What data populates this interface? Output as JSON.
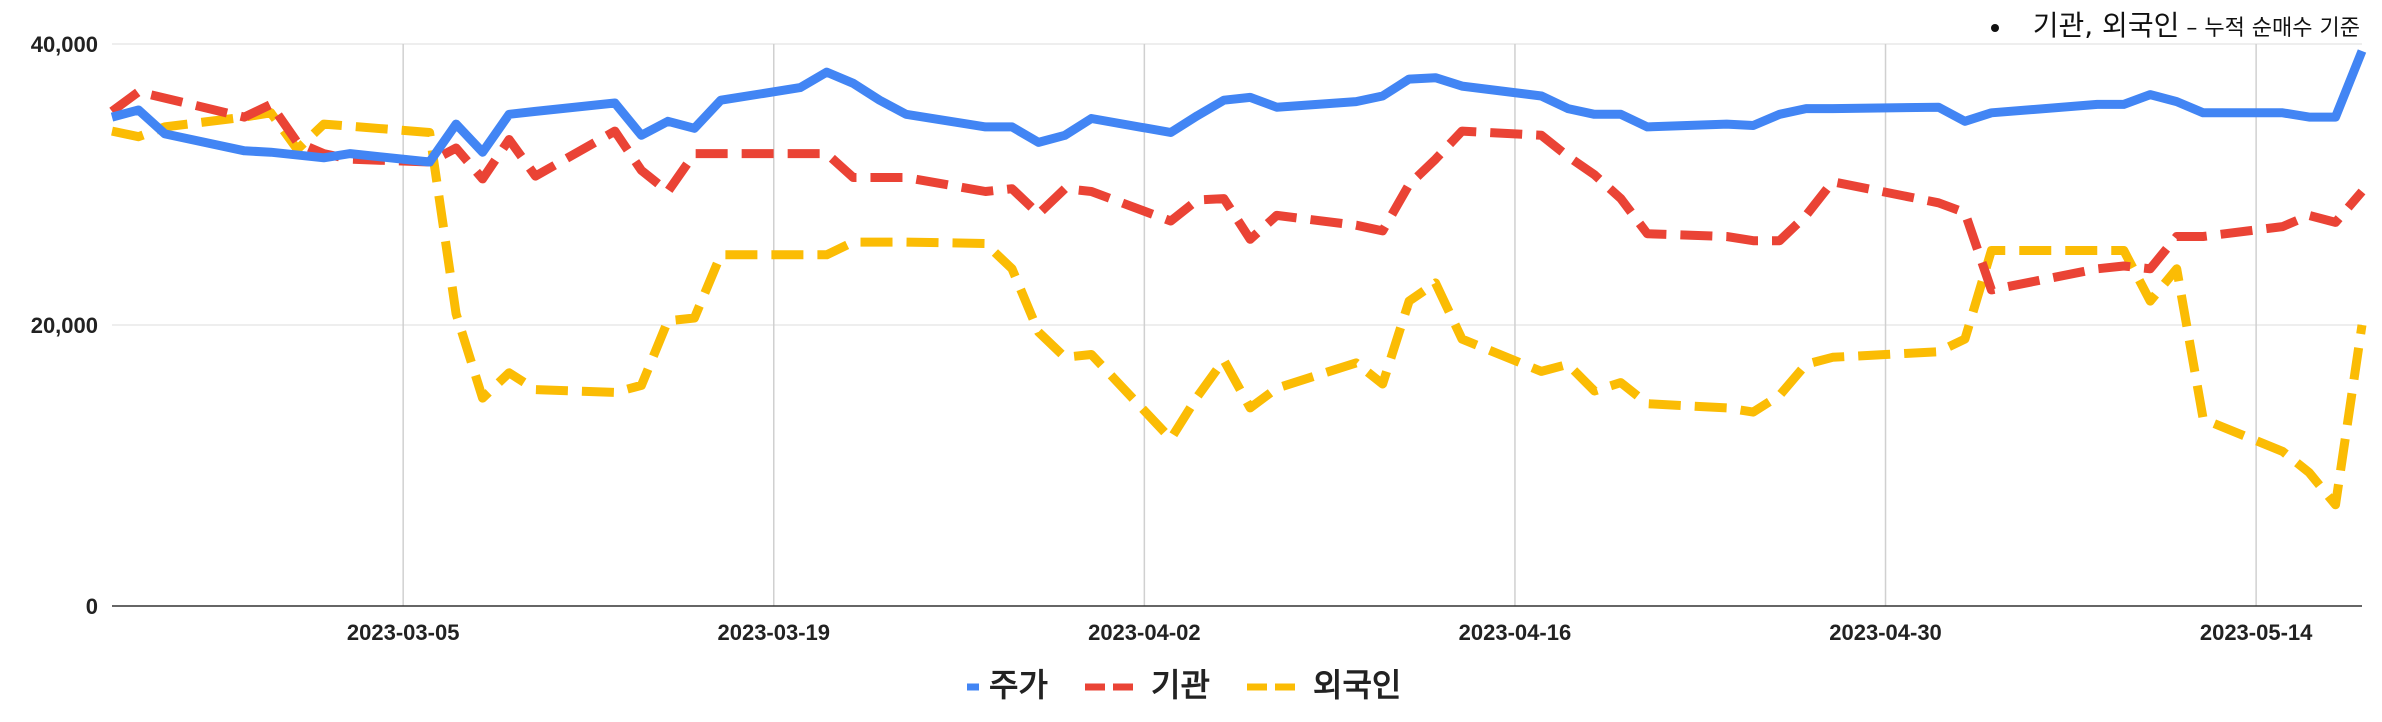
{
  "note": {
    "strong": "기관, 외국인",
    "weak": " – 누적 순매수 기준"
  },
  "chart_data": {
    "type": "line",
    "title": "",
    "xlabel": "",
    "ylabel": "",
    "ylim": [
      0,
      40000
    ],
    "y_ticks": [
      0,
      20000,
      40000
    ],
    "y_tick_labels": [
      "0",
      "20,000",
      "40,000"
    ],
    "x_range": [
      "2023-02-22",
      "2023-05-18"
    ],
    "x_ticks": [
      "2023-03-05",
      "2023-03-19",
      "2023-04-02",
      "2023-04-16",
      "2023-04-30",
      "2023-05-14"
    ],
    "grid": true,
    "legend_position": "bottom",
    "series": [
      {
        "name": "주가",
        "color": "#4285f4",
        "dash": "solid",
        "x": [
          "2023-02-22",
          "2023-02-23",
          "2023-02-24",
          "2023-02-27",
          "2023-02-28",
          "2023-03-02",
          "2023-03-03",
          "2023-03-06",
          "2023-03-07",
          "2023-03-08",
          "2023-03-09",
          "2023-03-10",
          "2023-03-13",
          "2023-03-14",
          "2023-03-15",
          "2023-03-16",
          "2023-03-17",
          "2023-03-20",
          "2023-03-21",
          "2023-03-22",
          "2023-03-23",
          "2023-03-24",
          "2023-03-27",
          "2023-03-28",
          "2023-03-29",
          "2023-03-30",
          "2023-03-31",
          "2023-04-03",
          "2023-04-04",
          "2023-04-05",
          "2023-04-06",
          "2023-04-07",
          "2023-04-10",
          "2023-04-11",
          "2023-04-12",
          "2023-04-13",
          "2023-04-14",
          "2023-04-17",
          "2023-04-18",
          "2023-04-19",
          "2023-04-20",
          "2023-04-21",
          "2023-04-24",
          "2023-04-25",
          "2023-04-26",
          "2023-04-27",
          "2023-04-28",
          "2023-05-02",
          "2023-05-03",
          "2023-05-04",
          "2023-05-08",
          "2023-05-09",
          "2023-05-10",
          "2023-05-11",
          "2023-05-12",
          "2023-05-15",
          "2023-05-16",
          "2023-05-17",
          "2023-05-18"
        ],
        "values": [
          34800,
          35300,
          33600,
          32400,
          32300,
          31900,
          32200,
          31600,
          34300,
          32300,
          35000,
          35200,
          35800,
          33500,
          34500,
          34000,
          36000,
          36900,
          38000,
          37200,
          36000,
          35000,
          34100,
          34100,
          33000,
          33500,
          34700,
          33700,
          34900,
          36000,
          36200,
          35500,
          35900,
          36300,
          37500,
          37600,
          37000,
          36300,
          35400,
          35000,
          35000,
          34100,
          34300,
          34200,
          35000,
          35400,
          35400,
          35500,
          34500,
          35100,
          35700,
          35700,
          36400,
          35900,
          35100,
          35100,
          34800,
          34800,
          39500
        ]
      },
      {
        "name": "기관",
        "color": "#ea4335",
        "dash": "long-dash",
        "x": [
          "2023-02-22",
          "2023-02-23",
          "2023-02-27",
          "2023-02-28",
          "2023-03-01",
          "2023-03-02",
          "2023-03-03",
          "2023-03-06",
          "2023-03-07",
          "2023-03-08",
          "2023-03-09",
          "2023-03-10",
          "2023-03-13",
          "2023-03-14",
          "2023-03-15",
          "2023-03-16",
          "2023-03-17",
          "2023-03-20",
          "2023-03-21",
          "2023-03-22",
          "2023-03-23",
          "2023-03-24",
          "2023-03-27",
          "2023-03-28",
          "2023-03-29",
          "2023-03-30",
          "2023-03-31",
          "2023-04-03",
          "2023-04-04",
          "2023-04-05",
          "2023-04-06",
          "2023-04-07",
          "2023-04-10",
          "2023-04-11",
          "2023-04-12",
          "2023-04-13",
          "2023-04-14",
          "2023-04-17",
          "2023-04-18",
          "2023-04-19",
          "2023-04-20",
          "2023-04-21",
          "2023-04-24",
          "2023-04-25",
          "2023-04-26",
          "2023-04-27",
          "2023-04-28",
          "2023-05-02",
          "2023-05-03",
          "2023-05-04",
          "2023-05-08",
          "2023-05-09",
          "2023-05-10",
          "2023-05-11",
          "2023-05-12",
          "2023-05-15",
          "2023-05-16",
          "2023-05-17",
          "2023-05-18"
        ],
        "values": [
          35200,
          36600,
          34800,
          35700,
          33000,
          32200,
          31800,
          31600,
          32600,
          30400,
          33200,
          30600,
          33800,
          31000,
          29500,
          32200,
          32200,
          32200,
          32200,
          30500,
          30500,
          30500,
          29500,
          29700,
          27900,
          29700,
          29500,
          27400,
          28900,
          29000,
          26100,
          27800,
          27100,
          26700,
          30000,
          31800,
          33800,
          33500,
          32000,
          30700,
          29000,
          26500,
          26300,
          26000,
          26000,
          27800,
          30200,
          28700,
          28000,
          22500,
          24000,
          24200,
          24000,
          26300,
          26300,
          27000,
          27800,
          27300,
          29500
        ]
      },
      {
        "name": "외국인",
        "color": "#fbbc04",
        "dash": "long-dash",
        "x": [
          "2023-02-22",
          "2023-02-23",
          "2023-02-24",
          "2023-02-27",
          "2023-02-28",
          "2023-03-01",
          "2023-03-02",
          "2023-03-06",
          "2023-03-07",
          "2023-03-08",
          "2023-03-09",
          "2023-03-10",
          "2023-03-13",
          "2023-03-14",
          "2023-03-15",
          "2023-03-16",
          "2023-03-17",
          "2023-03-20",
          "2023-03-21",
          "2023-03-22",
          "2023-03-23",
          "2023-03-24",
          "2023-03-27",
          "2023-03-28",
          "2023-03-29",
          "2023-03-30",
          "2023-03-31",
          "2023-04-03",
          "2023-04-04",
          "2023-04-05",
          "2023-04-06",
          "2023-04-07",
          "2023-04-10",
          "2023-04-11",
          "2023-04-12",
          "2023-04-13",
          "2023-04-14",
          "2023-04-17",
          "2023-04-18",
          "2023-04-19",
          "2023-04-20",
          "2023-04-21",
          "2023-04-24",
          "2023-04-25",
          "2023-04-26",
          "2023-04-27",
          "2023-04-28",
          "2023-05-02",
          "2023-05-03",
          "2023-05-04",
          "2023-05-08",
          "2023-05-09",
          "2023-05-10",
          "2023-05-11",
          "2023-05-12",
          "2023-05-15",
          "2023-05-16",
          "2023-05-17",
          "2023-05-18"
        ],
        "values": [
          33800,
          33400,
          34100,
          34800,
          35100,
          32500,
          34300,
          33700,
          20800,
          14800,
          16600,
          15400,
          15200,
          15700,
          20300,
          20500,
          25000,
          25000,
          25000,
          25900,
          25900,
          25900,
          25800,
          24000,
          19500,
          17700,
          17900,
          11900,
          14900,
          17500,
          14100,
          15500,
          17300,
          15800,
          21700,
          23000,
          19000,
          16700,
          17200,
          15300,
          15900,
          14400,
          14100,
          13800,
          15000,
          17200,
          17700,
          18100,
          19000,
          25300,
          25300,
          25300,
          21700,
          24000,
          13300,
          11000,
          9500,
          7200,
          20000
        ]
      }
    ]
  }
}
